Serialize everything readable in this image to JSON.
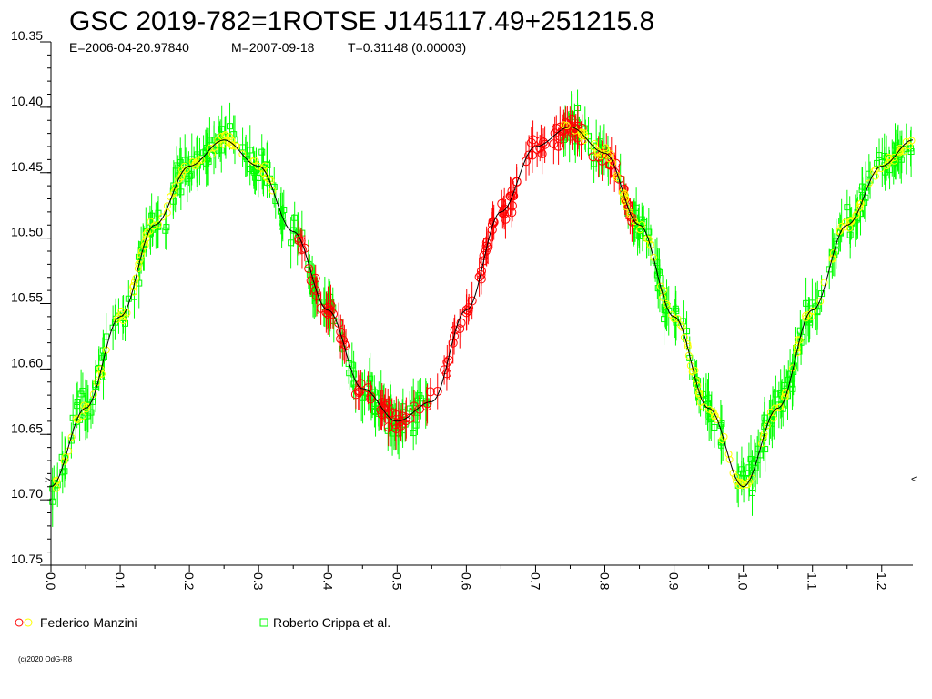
{
  "chart_data": {
    "type": "scatter",
    "title": "GSC 2019-782=1ROTSE J145117.49+251215.8",
    "subtitle": {
      "epoch": "E=2006-04-20.97840",
      "max": "M=2007-09-18",
      "period": "T=0.31148 (0.00003)"
    },
    "xlabel": "",
    "ylabel": "",
    "xlim": [
      0.0,
      1.245
    ],
    "ylim": [
      10.35,
      10.75
    ],
    "y_inverted": true,
    "yticks": [
      "10.35",
      "10.40",
      "10.45",
      "10.50",
      "10.55",
      "10.60",
      "10.65",
      "10.70",
      "10.75"
    ],
    "xticks": [
      "0.0",
      "0.1",
      "0.2",
      "0.3",
      "0.4",
      "0.5",
      "0.6",
      "0.7",
      "0.8",
      "0.9",
      "1.0",
      "1.1",
      "1.2"
    ],
    "grid": false,
    "legend_position": "bottom",
    "fit_curve": {
      "color": "#000000",
      "x": [
        0.0,
        0.05,
        0.1,
        0.15,
        0.2,
        0.25,
        0.3,
        0.35,
        0.4,
        0.45,
        0.5,
        0.55,
        0.6,
        0.65,
        0.7,
        0.75,
        0.8,
        0.85,
        0.9,
        0.95,
        1.0,
        1.05,
        1.1,
        1.15,
        1.2,
        1.245
      ],
      "y": [
        10.69,
        10.63,
        10.56,
        10.49,
        10.445,
        10.425,
        10.445,
        10.495,
        10.555,
        10.615,
        10.64,
        10.625,
        10.555,
        10.48,
        10.43,
        10.415,
        10.435,
        10.49,
        10.56,
        10.63,
        10.69,
        10.63,
        10.555,
        10.49,
        10.445,
        10.425
      ]
    },
    "series": [
      {
        "name": "Federico Manzini",
        "colors": [
          "#ff0000",
          "#ffff00"
        ],
        "marker": "circle",
        "ranges": [
          [
            0.35,
            0.84
          ]
        ],
        "yellow_ranges": [
          [
            0.0,
            0.33
          ],
          [
            0.74,
            1.245
          ]
        ]
      },
      {
        "name": "Roberto Crippa et al.",
        "colors": [
          "#00ff00"
        ],
        "marker": "square",
        "ranges": [
          [
            0.0,
            0.55
          ],
          [
            0.74,
            1.245
          ]
        ]
      }
    ],
    "edge_markers": [
      ">",
      "<"
    ],
    "copyright": "(c)2020 OdG-R8"
  }
}
